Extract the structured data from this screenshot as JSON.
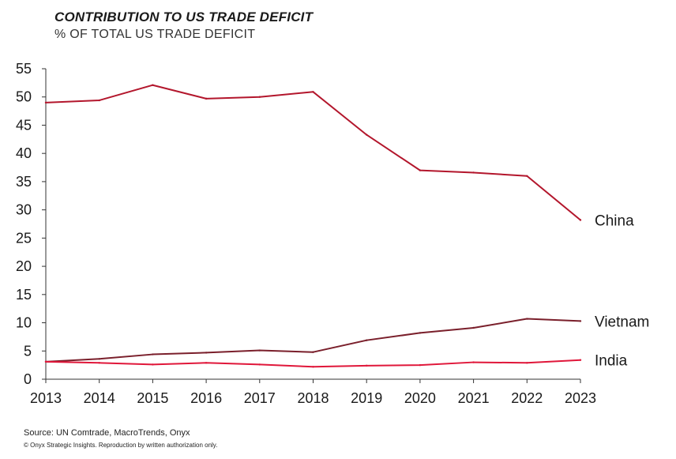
{
  "header": {
    "title": "CONTRIBUTION TO US TRADE DEFICIT",
    "subtitle": "% OF TOTAL US TRADE DEFICIT"
  },
  "footer": {
    "source": "Source: UN Comtrade, MacroTrends, Onyx",
    "copyright": "© Onyx Strategic Insights. Reproduction by written authorization only."
  },
  "chart_data": {
    "type": "line",
    "title": "CONTRIBUTION TO US TRADE DEFICIT",
    "subtitle": "% OF TOTAL US TRADE DEFICIT",
    "xlabel": "",
    "ylabel": "",
    "x": [
      "2013",
      "2014",
      "2015",
      "2016",
      "2017",
      "2018",
      "2019",
      "2020",
      "2021",
      "2022",
      "2023"
    ],
    "ylim": [
      0,
      55
    ],
    "yticks": [
      "0",
      "5",
      "10",
      "15",
      "20",
      "25",
      "30",
      "35",
      "40",
      "45",
      "50",
      "55"
    ],
    "grid": false,
    "legend": "direct labels at line ends",
    "series": [
      {
        "name": "China",
        "color": "#b3162c",
        "values": [
          49,
          49.4,
          52.1,
          49.7,
          50,
          50.9,
          43.3,
          37,
          36.6,
          36,
          28.2
        ]
      },
      {
        "name": "Vietnam",
        "color": "#7a1f2b",
        "values": [
          3.1,
          3.6,
          4.4,
          4.7,
          5.1,
          4.8,
          6.9,
          8.2,
          9.1,
          10.7,
          10.3
        ]
      },
      {
        "name": "India",
        "color": "#e0173a",
        "values": [
          3.1,
          2.9,
          2.6,
          2.9,
          2.6,
          2.2,
          2.4,
          2.5,
          3.0,
          2.9,
          3.4
        ]
      }
    ]
  }
}
